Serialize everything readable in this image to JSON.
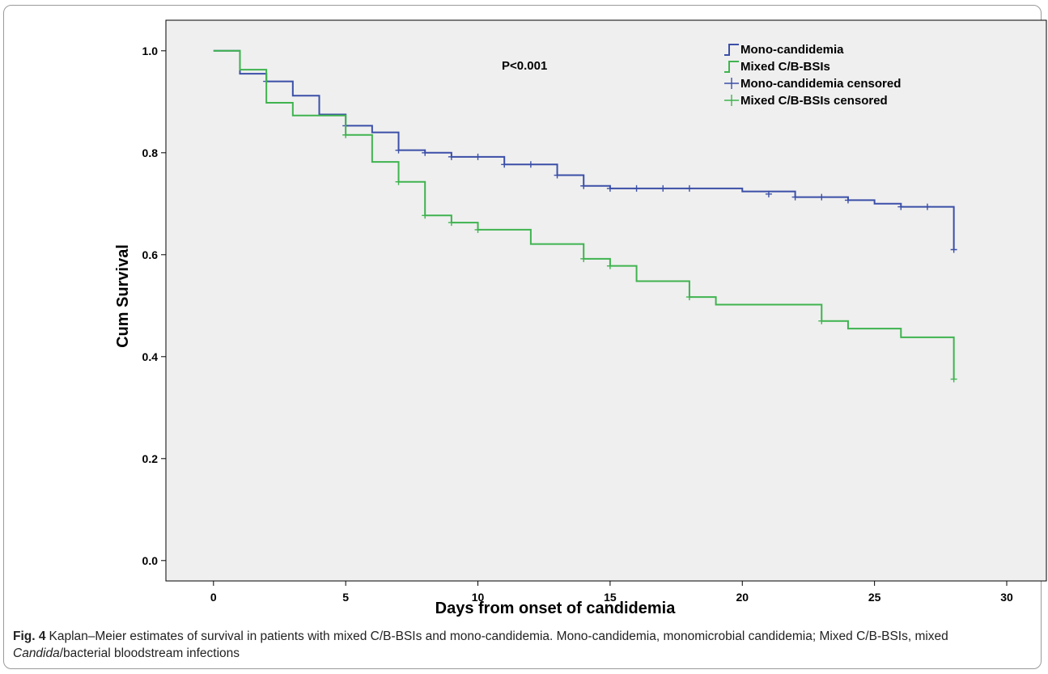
{
  "chart_data": {
    "type": "line",
    "subtype": "kaplan-meier-step",
    "xlabel": "Days from onset of candidemia",
    "ylabel": "Cum Survival",
    "xlim": [
      -1.8,
      31.5
    ],
    "ylim": [
      -0.04,
      1.06
    ],
    "xticks": [
      0,
      5,
      10,
      15,
      20,
      25,
      30
    ],
    "yticks": [
      0.0,
      0.2,
      0.4,
      0.6,
      0.8,
      1.0
    ],
    "ytick_labels": [
      "0.0",
      "0.2",
      "0.4",
      "0.6",
      "0.8",
      "1.0"
    ],
    "annotation": "P<0.001",
    "grid": false,
    "legend_position": "top-right",
    "background": "#efefef",
    "legend": [
      {
        "label": "Mono-candidemia",
        "kind": "step",
        "color": "#3b4fa8"
      },
      {
        "label": "Mixed C/B-BSIs",
        "kind": "step",
        "color": "#3fb34f"
      },
      {
        "label": "Mono-candidemia censored",
        "kind": "censor",
        "color": "#3b4fa8"
      },
      {
        "label": "Mixed C/B-BSIs censored",
        "kind": "censor",
        "color": "#3fb34f"
      }
    ],
    "series": [
      {
        "name": "Mono-candidemia",
        "color": "#3b4fa8",
        "steps": [
          [
            0,
            1.0
          ],
          [
            1,
            0.955
          ],
          [
            2,
            0.94
          ],
          [
            3,
            0.912
          ],
          [
            4,
            0.875
          ],
          [
            5,
            0.853
          ],
          [
            6,
            0.84
          ],
          [
            7,
            0.805
          ],
          [
            8,
            0.8
          ],
          [
            9,
            0.792
          ],
          [
            11,
            0.777
          ],
          [
            13,
            0.756
          ],
          [
            14,
            0.735
          ],
          [
            15,
            0.73
          ],
          [
            20,
            0.724
          ],
          [
            22,
            0.713
          ],
          [
            24,
            0.707
          ],
          [
            25,
            0.7
          ],
          [
            26,
            0.694
          ],
          [
            28,
            0.61
          ]
        ],
        "censored": [
          [
            2,
            0.94
          ],
          [
            5,
            0.853
          ],
          [
            7,
            0.805
          ],
          [
            8,
            0.8
          ],
          [
            9,
            0.792
          ],
          [
            10,
            0.792
          ],
          [
            11,
            0.777
          ],
          [
            12,
            0.777
          ],
          [
            13,
            0.756
          ],
          [
            14,
            0.735
          ],
          [
            15,
            0.73
          ],
          [
            16,
            0.73
          ],
          [
            17,
            0.73
          ],
          [
            18,
            0.73
          ],
          [
            21,
            0.719
          ],
          [
            22,
            0.713
          ],
          [
            23,
            0.713
          ],
          [
            24,
            0.707
          ],
          [
            26,
            0.694
          ],
          [
            27,
            0.694
          ],
          [
            28,
            0.61
          ]
        ]
      },
      {
        "name": "Mixed C/B-BSIs",
        "color": "#3fb34f",
        "steps": [
          [
            0,
            1.0
          ],
          [
            1,
            0.963
          ],
          [
            2,
            0.898
          ],
          [
            3,
            0.873
          ],
          [
            5,
            0.835
          ],
          [
            6,
            0.782
          ],
          [
            7,
            0.743
          ],
          [
            8,
            0.677
          ],
          [
            9,
            0.663
          ],
          [
            10,
            0.649
          ],
          [
            12,
            0.621
          ],
          [
            14,
            0.592
          ],
          [
            15,
            0.578
          ],
          [
            16,
            0.548
          ],
          [
            18,
            0.517
          ],
          [
            19,
            0.502
          ],
          [
            23,
            0.47
          ],
          [
            24,
            0.455
          ],
          [
            26,
            0.438
          ],
          [
            28,
            0.356
          ]
        ],
        "censored": [
          [
            5,
            0.835
          ],
          [
            7,
            0.743
          ],
          [
            8,
            0.677
          ],
          [
            9,
            0.663
          ],
          [
            10,
            0.649
          ],
          [
            14,
            0.592
          ],
          [
            15,
            0.578
          ],
          [
            18,
            0.517
          ],
          [
            23,
            0.47
          ],
          [
            28,
            0.356
          ]
        ]
      }
    ]
  },
  "caption": {
    "label": "Fig. 4",
    "text1": "Kaplan–Meier estimates of survival in patients with mixed C/B-BSIs and mono-candidemia. Mono-candidemia, monomicrobial candidemia; Mixed C/B-BSIs, mixed ",
    "italic": "Candida",
    "text2": "/bacterial bloodstream infections"
  }
}
